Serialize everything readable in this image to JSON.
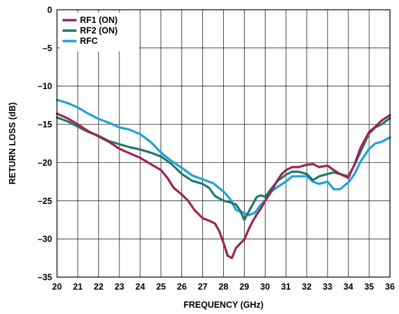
{
  "chart_data": {
    "type": "line",
    "xlabel": "FREQUENCY (GHz)",
    "ylabel": "RETURN LOSS (dB)",
    "xlim": [
      20,
      36
    ],
    "ylim": [
      -35,
      0
    ],
    "xticks": [
      20,
      21,
      22,
      23,
      24,
      25,
      26,
      27,
      28,
      29,
      30,
      31,
      32,
      33,
      34,
      35,
      36
    ],
    "yticks": [
      0,
      -5,
      -10,
      -15,
      -20,
      -25,
      -30,
      -35
    ],
    "ytick_labels": [
      "0",
      "–5",
      "–10",
      "–15",
      "–20",
      "–25",
      "–30",
      "–35"
    ],
    "grid": true,
    "legend_position": "top-left",
    "series": [
      {
        "name": "RF1 (ON)",
        "color": "#a0234e",
        "x": [
          20,
          20.5,
          21,
          21.5,
          22,
          22.5,
          23,
          23.5,
          24,
          24.5,
          25,
          25.3,
          25.6,
          26,
          26.3,
          26.6,
          27,
          27.3,
          27.6,
          27.8,
          28,
          28.2,
          28.4,
          28.6,
          28.8,
          29,
          29.2,
          29.4,
          29.6,
          29.8,
          30,
          30.2,
          30.4,
          30.6,
          30.8,
          31,
          31.3,
          31.6,
          32,
          32.3,
          32.6,
          33,
          33.3,
          33.6,
          34,
          34.3,
          34.6,
          35,
          35.3,
          35.6,
          36
        ],
        "values": [
          -13.6,
          -14.2,
          -15,
          -15.9,
          -16.6,
          -17.3,
          -18.2,
          -18.8,
          -19.4,
          -20.2,
          -21,
          -22,
          -23.3,
          -24.2,
          -25,
          -26.2,
          -27.3,
          -27.6,
          -28,
          -29,
          -30.5,
          -32.2,
          -32.5,
          -31.2,
          -30.6,
          -30.1,
          -28.8,
          -27.7,
          -26.8,
          -26,
          -25,
          -24.2,
          -23.3,
          -22.3,
          -21.5,
          -21,
          -20.6,
          -20.6,
          -20.3,
          -20.2,
          -20.6,
          -20.4,
          -21,
          -21.5,
          -22,
          -20.2,
          -18,
          -16,
          -15.3,
          -14.5,
          -13.8
        ]
      },
      {
        "name": "RF2 (ON)",
        "color": "#1e7a6e",
        "x": [
          20,
          20.5,
          21,
          21.5,
          22,
          22.5,
          23,
          23.5,
          24,
          24.5,
          25,
          25.5,
          26,
          26.5,
          27,
          27.3,
          27.6,
          28,
          28.3,
          28.6,
          28.8,
          29,
          29.2,
          29.4,
          29.6,
          29.8,
          30,
          30.3,
          30.6,
          31,
          31.3,
          31.6,
          32,
          32.3,
          32.6,
          33,
          33.3,
          33.6,
          34,
          34.3,
          34.6,
          35,
          35.3,
          35.6,
          36
        ],
        "values": [
          -14.1,
          -14.6,
          -15.3,
          -16,
          -16.5,
          -17.2,
          -17.6,
          -18,
          -18.3,
          -18.7,
          -19.2,
          -20.2,
          -21.5,
          -22.4,
          -22.8,
          -23.3,
          -24.4,
          -25,
          -25.2,
          -25.5,
          -26.3,
          -27.5,
          -26.5,
          -25.5,
          -24.5,
          -24.3,
          -24.5,
          -23.4,
          -22.4,
          -21.6,
          -21.2,
          -21.2,
          -21.5,
          -22.3,
          -21.8,
          -21.5,
          -21.3,
          -21.5,
          -21.8,
          -20.3,
          -18.5,
          -16.2,
          -15.4,
          -15,
          -14.2
        ]
      },
      {
        "name": "RFC",
        "color": "#1fa2d8",
        "x": [
          20,
          20.5,
          21,
          21.5,
          22,
          22.5,
          23,
          23.5,
          24,
          24.5,
          25,
          25.5,
          26,
          26.5,
          27,
          27.5,
          28,
          28.3,
          28.6,
          28.9,
          29.2,
          29.5,
          29.8,
          30,
          30.3,
          30.6,
          31,
          31.3,
          31.6,
          32,
          32.3,
          32.6,
          33,
          33.3,
          33.6,
          34,
          34.3,
          34.6,
          35,
          35.3,
          35.6,
          36
        ],
        "values": [
          -11.8,
          -12.2,
          -12.8,
          -13.6,
          -14.3,
          -14.8,
          -15.4,
          -15.7,
          -16.3,
          -17.3,
          -18.7,
          -19.8,
          -20.7,
          -21.7,
          -22.2,
          -22.7,
          -23.8,
          -24.7,
          -26.2,
          -26.5,
          -26.9,
          -26.6,
          -25.5,
          -25,
          -23.8,
          -23.2,
          -22.5,
          -21.8,
          -21.8,
          -21.8,
          -22.5,
          -22.8,
          -22.5,
          -23.5,
          -23.5,
          -22.6,
          -21.5,
          -19.8,
          -18.2,
          -17.5,
          -17.3,
          -16.7
        ]
      }
    ]
  }
}
